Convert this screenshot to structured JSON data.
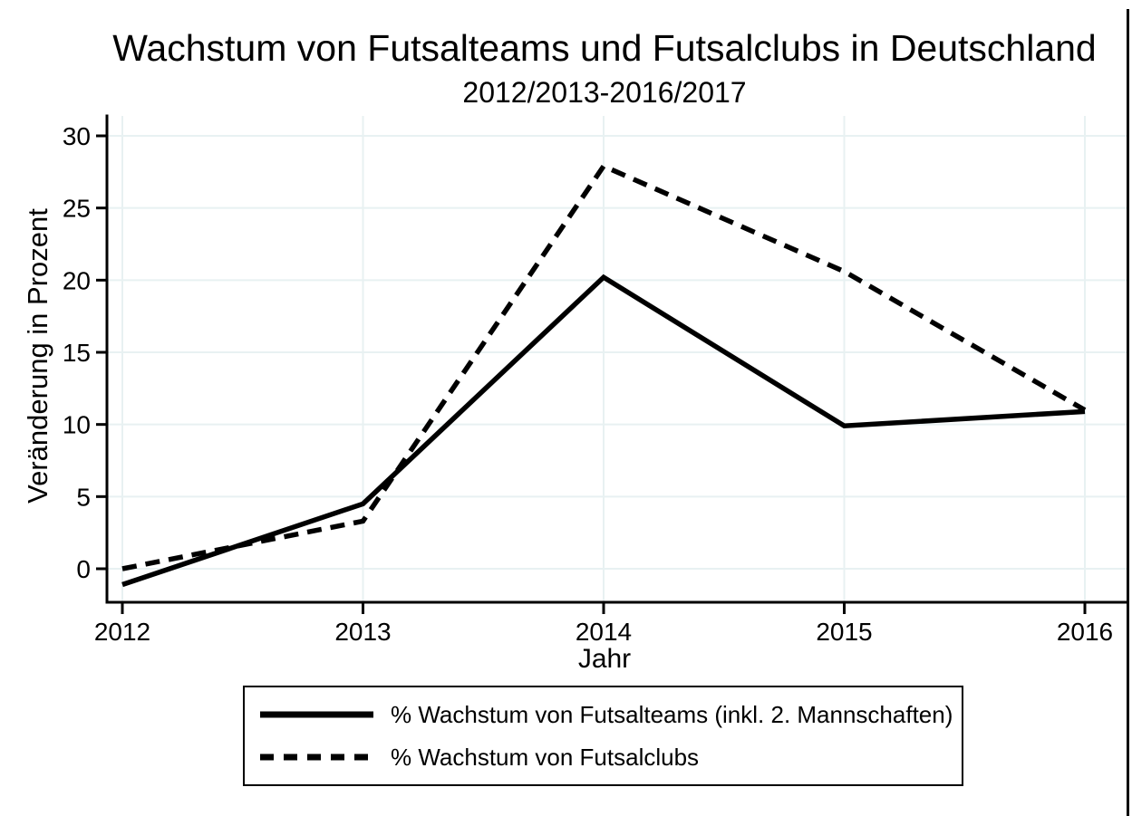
{
  "chart_data": {
    "type": "line",
    "title": "Wachstum von Futsalteams und Futsalclubs in Deutschland",
    "subtitle": "2012/2013-2016/2017",
    "xlabel": "Jahr",
    "ylabel": "Veränderung in Prozent",
    "x": [
      2012,
      2013,
      2014,
      2015,
      2016
    ],
    "x_tick_labels": [
      "2012",
      "2013",
      "2014",
      "2015",
      "2016"
    ],
    "y_ticks": [
      0,
      5,
      10,
      15,
      20,
      25,
      30
    ],
    "ylim": [
      -2.3,
      31.4
    ],
    "grid": true,
    "legend_position": "bottom",
    "series": [
      {
        "name": "% Wachstum von Futsalteams (inkl. 2. Mannschaften)",
        "style": "solid",
        "values": [
          -1.1,
          4.5,
          20.2,
          9.9,
          10.9
        ]
      },
      {
        "name": "% Wachstum von Futsalclubs",
        "style": "dashed",
        "values": [
          0,
          3.3,
          27.9,
          20.6,
          11
        ]
      }
    ],
    "colors": {
      "line": "#000000",
      "grid": "#e8f1f2",
      "background": "#ffffff"
    }
  }
}
